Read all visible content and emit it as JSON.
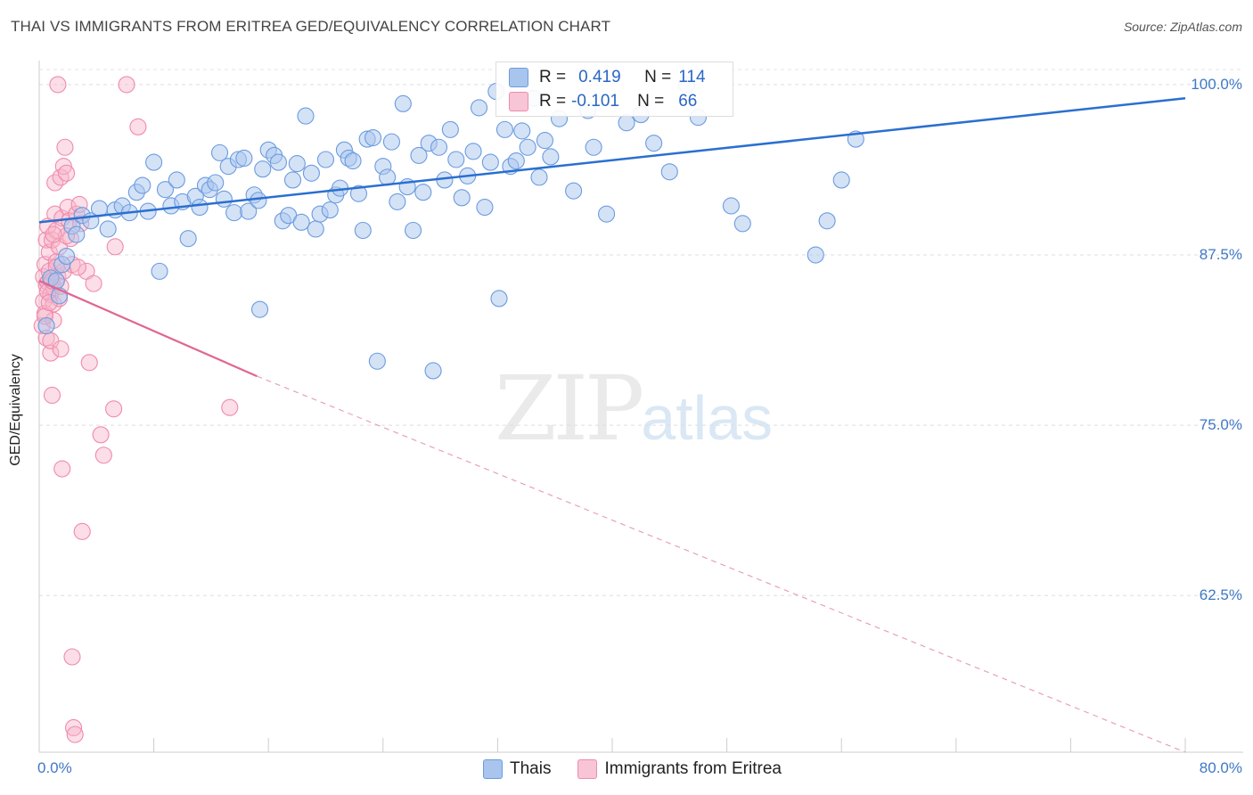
{
  "header": {
    "title": "THAI VS IMMIGRANTS FROM ERITREA GED/EQUIVALENCY CORRELATION CHART",
    "source": "Source: ZipAtlas.com"
  },
  "watermark": {
    "zip": "ZIP",
    "atlas": "atlas"
  },
  "legend": {
    "r_label": "R =",
    "n_label": "N =",
    "rows": [
      {
        "r": "0.419",
        "n": "114",
        "color": "#a9c5ed"
      },
      {
        "r": "-0.101",
        "n": "66",
        "color": "#f7b6ca"
      }
    ]
  },
  "bottom_legend": {
    "series1": "Thais",
    "series2": "Immigrants from Eritrea"
  },
  "chart_data": {
    "type": "scatter",
    "title": "THAI VS IMMIGRANTS FROM ERITREA GED/EQUIVALENCY CORRELATION CHART",
    "xlabel": "",
    "ylabel": "GED/Equivalency",
    "xlim": [
      0,
      80
    ],
    "ylim": [
      51,
      101.5
    ],
    "x_tick_labels": [
      "0.0%",
      "80.0%"
    ],
    "y_ticks": [
      62.5,
      75.0,
      87.5,
      100.0
    ],
    "y_tick_labels": [
      "62.5%",
      "75.0%",
      "87.5%",
      "100.0%"
    ],
    "grid": true,
    "legend_position": "top-center",
    "series": [
      {
        "name": "Thais",
        "color": "#6b9be0",
        "trend": {
          "x": [
            0,
            80
          ],
          "y": [
            89.9,
            99.0
          ],
          "style": "solid",
          "color": "#2a6fd0"
        },
        "points": [
          [
            0.5,
            82.3
          ],
          [
            0.8,
            85.8
          ],
          [
            1.2,
            85.6
          ],
          [
            1.4,
            84.5
          ],
          [
            1.6,
            86.8
          ],
          [
            1.9,
            87.4
          ],
          [
            2.3,
            89.6
          ],
          [
            2.6,
            89.0
          ],
          [
            3.0,
            90.4
          ],
          [
            3.6,
            90.0
          ],
          [
            4.2,
            90.9
          ],
          [
            4.8,
            89.4
          ],
          [
            5.3,
            90.8
          ],
          [
            5.8,
            91.1
          ],
          [
            6.3,
            90.6
          ],
          [
            6.8,
            92.1
          ],
          [
            7.2,
            92.6
          ],
          [
            7.6,
            90.7
          ],
          [
            8.0,
            94.3
          ],
          [
            8.4,
            86.3
          ],
          [
            8.8,
            92.3
          ],
          [
            9.2,
            91.1
          ],
          [
            9.6,
            93.0
          ],
          [
            10.0,
            91.4
          ],
          [
            10.4,
            88.7
          ],
          [
            10.9,
            91.8
          ],
          [
            11.2,
            91.0
          ],
          [
            11.6,
            92.6
          ],
          [
            11.9,
            92.3
          ],
          [
            12.3,
            92.8
          ],
          [
            12.6,
            95.0
          ],
          [
            12.9,
            91.6
          ],
          [
            13.2,
            94.0
          ],
          [
            13.6,
            90.6
          ],
          [
            13.9,
            94.5
          ],
          [
            14.3,
            94.6
          ],
          [
            14.6,
            90.7
          ],
          [
            15.0,
            91.9
          ],
          [
            15.3,
            91.5
          ],
          [
            15.6,
            93.8
          ],
          [
            15.4,
            83.5
          ],
          [
            16.0,
            95.2
          ],
          [
            16.4,
            94.8
          ],
          [
            16.7,
            94.3
          ],
          [
            17.0,
            90.0
          ],
          [
            17.4,
            90.4
          ],
          [
            17.7,
            93.0
          ],
          [
            18.0,
            94.2
          ],
          [
            18.3,
            89.9
          ],
          [
            18.6,
            97.7
          ],
          [
            19.0,
            93.5
          ],
          [
            19.3,
            89.4
          ],
          [
            19.6,
            90.5
          ],
          [
            20.0,
            94.5
          ],
          [
            20.3,
            90.8
          ],
          [
            20.7,
            91.9
          ],
          [
            21.0,
            92.4
          ],
          [
            21.3,
            95.2
          ],
          [
            21.6,
            94.6
          ],
          [
            21.9,
            94.4
          ],
          [
            22.3,
            92.0
          ],
          [
            22.6,
            89.3
          ],
          [
            22.9,
            96.0
          ],
          [
            23.3,
            96.1
          ],
          [
            23.6,
            79.7
          ],
          [
            24.0,
            94.0
          ],
          [
            24.3,
            93.2
          ],
          [
            24.6,
            95.8
          ],
          [
            25.0,
            91.4
          ],
          [
            25.4,
            98.6
          ],
          [
            25.7,
            92.5
          ],
          [
            26.1,
            89.3
          ],
          [
            26.5,
            94.8
          ],
          [
            26.8,
            92.1
          ],
          [
            27.2,
            95.7
          ],
          [
            27.5,
            79.0
          ],
          [
            27.9,
            95.4
          ],
          [
            28.3,
            93.0
          ],
          [
            28.7,
            96.7
          ],
          [
            29.1,
            94.5
          ],
          [
            29.5,
            91.7
          ],
          [
            29.9,
            93.3
          ],
          [
            30.3,
            95.1
          ],
          [
            30.7,
            98.3
          ],
          [
            31.1,
            91.0
          ],
          [
            31.5,
            94.3
          ],
          [
            31.9,
            99.5
          ],
          [
            32.1,
            84.3
          ],
          [
            32.5,
            96.7
          ],
          [
            32.9,
            94.0
          ],
          [
            33.3,
            94.4
          ],
          [
            33.7,
            96.6
          ],
          [
            34.1,
            95.4
          ],
          [
            34.5,
            99.0
          ],
          [
            34.9,
            93.2
          ],
          [
            35.3,
            95.9
          ],
          [
            35.7,
            94.7
          ],
          [
            36.3,
            97.5
          ],
          [
            37.3,
            92.2
          ],
          [
            38.3,
            98.1
          ],
          [
            38.7,
            95.4
          ],
          [
            39.6,
            90.5
          ],
          [
            41.0,
            97.2
          ],
          [
            42.0,
            97.8
          ],
          [
            42.9,
            95.7
          ],
          [
            44.0,
            93.6
          ],
          [
            45.2,
            100.0
          ],
          [
            46.0,
            97.6
          ],
          [
            48.3,
            91.1
          ],
          [
            49.1,
            89.8
          ],
          [
            54.2,
            87.5
          ],
          [
            55.0,
            90.0
          ],
          [
            56.0,
            93.0
          ],
          [
            57.0,
            96.0
          ]
        ]
      },
      {
        "name": "Immigrants from Eritrea",
        "color": "#f08aac",
        "trend": {
          "x": [
            0,
            15.2
          ],
          "y": [
            85.6,
            78.6
          ],
          "style": "solid",
          "color": "#e06592",
          "dashed_extension": {
            "x": [
              15.2,
              80
            ],
            "y": [
              78.6,
              51.0
            ]
          }
        },
        "points": [
          [
            0.2,
            82.3
          ],
          [
            0.3,
            85.9
          ],
          [
            0.3,
            84.1
          ],
          [
            0.4,
            83.2
          ],
          [
            0.4,
            86.8
          ],
          [
            0.5,
            88.6
          ],
          [
            0.5,
            85.3
          ],
          [
            0.5,
            81.4
          ],
          [
            0.6,
            89.6
          ],
          [
            0.6,
            85.5
          ],
          [
            0.7,
            87.7
          ],
          [
            0.7,
            86.3
          ],
          [
            0.8,
            84.6
          ],
          [
            0.8,
            80.3
          ],
          [
            0.8,
            81.2
          ],
          [
            0.9,
            77.2
          ],
          [
            0.9,
            88.6
          ],
          [
            1.0,
            85.1
          ],
          [
            1.0,
            83.9
          ],
          [
            1.0,
            82.7
          ],
          [
            1.1,
            92.8
          ],
          [
            1.1,
            90.5
          ],
          [
            1.2,
            89.3
          ],
          [
            1.2,
            87.0
          ],
          [
            1.3,
            85.9
          ],
          [
            1.3,
            100.0
          ],
          [
            1.4,
            88.1
          ],
          [
            1.4,
            84.3
          ],
          [
            1.5,
            93.2
          ],
          [
            1.5,
            80.6
          ],
          [
            1.6,
            71.8
          ],
          [
            1.6,
            90.2
          ],
          [
            1.7,
            86.3
          ],
          [
            1.7,
            94.0
          ],
          [
            1.8,
            95.4
          ],
          [
            1.9,
            93.5
          ],
          [
            2.0,
            91.0
          ],
          [
            2.1,
            90.0
          ],
          [
            2.2,
            88.7
          ],
          [
            2.3,
            86.8
          ],
          [
            2.4,
            52.8
          ],
          [
            2.5,
            52.3
          ],
          [
            2.3,
            58.0
          ],
          [
            2.6,
            90.5
          ],
          [
            2.8,
            91.2
          ],
          [
            2.9,
            89.8
          ],
          [
            3.0,
            67.2
          ],
          [
            3.3,
            86.3
          ],
          [
            3.5,
            79.6
          ],
          [
            3.8,
            85.4
          ],
          [
            4.3,
            74.3
          ],
          [
            4.5,
            72.8
          ],
          [
            5.2,
            76.2
          ],
          [
            5.3,
            88.1
          ],
          [
            6.1,
            100.0
          ],
          [
            6.9,
            96.9
          ],
          [
            13.3,
            76.3
          ],
          [
            0.6,
            84.8
          ],
          [
            0.9,
            85.6
          ],
          [
            1.2,
            86.6
          ],
          [
            0.4,
            83.0
          ],
          [
            0.7,
            84.0
          ],
          [
            1.5,
            85.2
          ],
          [
            1.9,
            88.9
          ],
          [
            2.7,
            86.6
          ],
          [
            1.0,
            89.0
          ]
        ]
      }
    ]
  }
}
